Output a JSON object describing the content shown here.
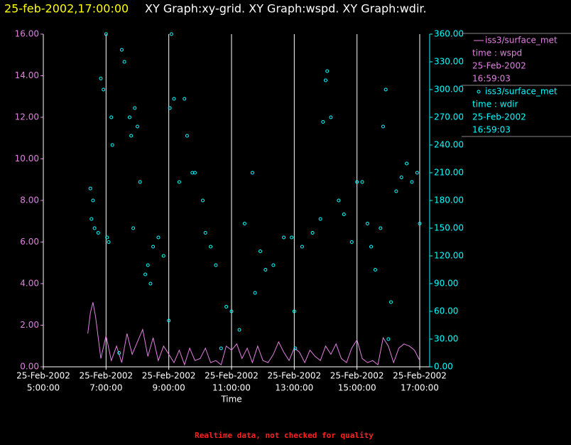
{
  "chart_data": {
    "type": "line_scatter",
    "title_time": "25-feb-2002,17:00:00",
    "title": "XY Graph:xy-grid.  XY Graph:wspd.  XY Graph:wdir.",
    "xlabel": "Time",
    "footer": "Realtime data, not checked for quality",
    "grid": true,
    "xlim": [
      "2002-02-25 05:00",
      "2002-02-25 17:00"
    ],
    "xticks": [
      {
        "value": "2002-02-25 05:00",
        "label": [
          "25-Feb-2002",
          "5:00:00"
        ]
      },
      {
        "value": "2002-02-25 07:00",
        "label": [
          "25-Feb-2002",
          "7:00:00"
        ]
      },
      {
        "value": "2002-02-25 09:00",
        "label": [
          "25-Feb-2002",
          "9:00:00"
        ]
      },
      {
        "value": "2002-02-25 11:00",
        "label": [
          "25-Feb-2002",
          "11:00:00"
        ]
      },
      {
        "value": "2002-02-25 13:00",
        "label": [
          "25-Feb-2002",
          "13:00:00"
        ]
      },
      {
        "value": "2002-02-25 15:00",
        "label": [
          "25-Feb-2002",
          "15:00:00"
        ]
      },
      {
        "value": "2002-02-25 17:00",
        "label": [
          "25-Feb-2002",
          "17:00:00"
        ]
      }
    ],
    "ylim": [
      0,
      16
    ],
    "yticks": [
      {
        "value": 0,
        "label": "0.00"
      },
      {
        "value": 2,
        "label": "2.00"
      },
      {
        "value": 4,
        "label": "4.00"
      },
      {
        "value": 6,
        "label": "6.00"
      },
      {
        "value": 8,
        "label": "8.00"
      },
      {
        "value": 10,
        "label": "10.00"
      },
      {
        "value": 12,
        "label": "12.00"
      },
      {
        "value": 14,
        "label": "14.00"
      },
      {
        "value": 16,
        "label": "16.00"
      }
    ],
    "y2lim": [
      0,
      360
    ],
    "y2ticks": [
      {
        "value": 0,
        "label": "0.00"
      },
      {
        "value": 30,
        "label": "30.00"
      },
      {
        "value": 60,
        "label": "60.00"
      },
      {
        "value": 90,
        "label": "90.00"
      },
      {
        "value": 120,
        "label": "120.00"
      },
      {
        "value": 150,
        "label": "150.00"
      },
      {
        "value": 180,
        "label": "180.00"
      },
      {
        "value": 210,
        "label": "210.00"
      },
      {
        "value": 240,
        "label": "240.00"
      },
      {
        "value": 270,
        "label": "270.00"
      },
      {
        "value": 300,
        "label": "300.00"
      },
      {
        "value": 330,
        "label": "330.00"
      },
      {
        "value": 360,
        "label": "360.00"
      }
    ],
    "series": [
      {
        "name": "iss3/surface_met",
        "legend_lines": [
          "time : wspd",
          "25-Feb-2002",
          "16:59:03"
        ],
        "color": "#e080e0",
        "kind": "line",
        "x": [
          "2002-02-25 06:25",
          "2002-02-25 06:30",
          "2002-02-25 06:35",
          "2002-02-25 06:40",
          "2002-02-25 06:50",
          "2002-02-25 07:00",
          "2002-02-25 07:10",
          "2002-02-25 07:20",
          "2002-02-25 07:30",
          "2002-02-25 07:40",
          "2002-02-25 07:50",
          "2002-02-25 08:00",
          "2002-02-25 08:10",
          "2002-02-25 08:20",
          "2002-02-25 08:30",
          "2002-02-25 08:40",
          "2002-02-25 08:50",
          "2002-02-25 09:00",
          "2002-02-25 09:10",
          "2002-02-25 09:20",
          "2002-02-25 09:30",
          "2002-02-25 09:40",
          "2002-02-25 09:50",
          "2002-02-25 10:00",
          "2002-02-25 10:10",
          "2002-02-25 10:20",
          "2002-02-25 10:30",
          "2002-02-25 10:40",
          "2002-02-25 10:50",
          "2002-02-25 11:00",
          "2002-02-25 11:10",
          "2002-02-25 11:20",
          "2002-02-25 11:30",
          "2002-02-25 11:40",
          "2002-02-25 11:50",
          "2002-02-25 12:00",
          "2002-02-25 12:10",
          "2002-02-25 12:20",
          "2002-02-25 12:30",
          "2002-02-25 12:40",
          "2002-02-25 12:50",
          "2002-02-25 13:00",
          "2002-02-25 13:10",
          "2002-02-25 13:20",
          "2002-02-25 13:30",
          "2002-02-25 13:40",
          "2002-02-25 13:50",
          "2002-02-25 14:00",
          "2002-02-25 14:10",
          "2002-02-25 14:20",
          "2002-02-25 14:30",
          "2002-02-25 14:40",
          "2002-02-25 14:50",
          "2002-02-25 15:00",
          "2002-02-25 15:10",
          "2002-02-25 15:20",
          "2002-02-25 15:30",
          "2002-02-25 15:40",
          "2002-02-25 15:50",
          "2002-02-25 16:00",
          "2002-02-25 16:10",
          "2002-02-25 16:20",
          "2002-02-25 16:30",
          "2002-02-25 16:40",
          "2002-02-25 16:50",
          "2002-02-25 17:00"
        ],
        "values": [
          1.6,
          2.6,
          3.1,
          2.4,
          0.4,
          1.5,
          0.3,
          1.0,
          0.2,
          1.6,
          0.6,
          1.2,
          1.8,
          0.5,
          1.4,
          0.3,
          1.0,
          0.6,
          0.2,
          0.8,
          0.1,
          0.9,
          0.3,
          0.4,
          0.9,
          0.2,
          0.3,
          0.1,
          1.0,
          0.8,
          1.1,
          0.4,
          0.9,
          0.2,
          1.0,
          0.3,
          0.2,
          0.6,
          1.2,
          0.7,
          0.3,
          0.9,
          0.7,
          0.2,
          0.8,
          0.5,
          0.3,
          1.0,
          0.6,
          1.1,
          0.4,
          0.2,
          0.9,
          1.3,
          0.4,
          0.2,
          0.3,
          0.1,
          1.4,
          1.0,
          0.2,
          0.9,
          1.1,
          1.0,
          0.8,
          0.3
        ]
      },
      {
        "name": "iss3/surface_met",
        "legend_lines": [
          "time : wdir",
          "25-Feb-2002",
          "16:59:03"
        ],
        "color": "#00ffff",
        "kind": "scatter",
        "axis": "y2",
        "x": [
          "2002-02-25 06:30",
          "2002-02-25 06:32",
          "2002-02-25 06:35",
          "2002-02-25 06:38",
          "2002-02-25 06:45",
          "2002-02-25 06:50",
          "2002-02-25 06:55",
          "2002-02-25 07:00",
          "2002-02-25 07:02",
          "2002-02-25 07:05",
          "2002-02-25 07:10",
          "2002-02-25 07:12",
          "2002-02-25 07:25",
          "2002-02-25 07:30",
          "2002-02-25 07:35",
          "2002-02-25 07:45",
          "2002-02-25 07:48",
          "2002-02-25 07:52",
          "2002-02-25 07:55",
          "2002-02-25 08:00",
          "2002-02-25 08:05",
          "2002-02-25 08:15",
          "2002-02-25 08:20",
          "2002-02-25 08:25",
          "2002-02-25 08:30",
          "2002-02-25 08:40",
          "2002-02-25 08:50",
          "2002-02-25 09:00",
          "2002-02-25 09:02",
          "2002-02-25 09:05",
          "2002-02-25 09:10",
          "2002-02-25 09:20",
          "2002-02-25 09:30",
          "2002-02-25 09:35",
          "2002-02-25 09:45",
          "2002-02-25 09:50",
          "2002-02-25 10:05",
          "2002-02-25 10:10",
          "2002-02-25 10:20",
          "2002-02-25 10:30",
          "2002-02-25 10:40",
          "2002-02-25 10:50",
          "2002-02-25 11:00",
          "2002-02-25 11:15",
          "2002-02-25 11:25",
          "2002-02-25 11:40",
          "2002-02-25 11:45",
          "2002-02-25 11:55",
          "2002-02-25 12:05",
          "2002-02-25 12:20",
          "2002-02-25 12:40",
          "2002-02-25 12:55",
          "2002-02-25 13:00",
          "2002-02-25 13:02",
          "2002-02-25 13:15",
          "2002-02-25 13:35",
          "2002-02-25 13:50",
          "2002-02-25 13:55",
          "2002-02-25 14:00",
          "2002-02-25 14:03",
          "2002-02-25 14:10",
          "2002-02-25 14:25",
          "2002-02-25 14:35",
          "2002-02-25 14:50",
          "2002-02-25 15:00",
          "2002-02-25 15:10",
          "2002-02-25 15:20",
          "2002-02-25 15:27",
          "2002-02-25 15:35",
          "2002-02-25 15:45",
          "2002-02-25 15:50",
          "2002-02-25 15:55",
          "2002-02-25 16:00",
          "2002-02-25 16:05",
          "2002-02-25 16:15",
          "2002-02-25 16:25",
          "2002-02-25 16:35",
          "2002-02-25 16:45",
          "2002-02-25 16:55",
          "2002-02-25 17:00"
        ],
        "values": [
          193,
          160,
          180,
          150,
          145,
          312,
          300,
          360,
          140,
          135,
          270,
          240,
          15,
          343,
          330,
          270,
          250,
          150,
          280,
          260,
          200,
          100,
          110,
          90,
          130,
          140,
          120,
          50,
          280,
          360,
          290,
          200,
          290,
          250,
          210,
          210,
          180,
          145,
          130,
          110,
          20,
          65,
          60,
          40,
          155,
          210,
          80,
          125,
          105,
          110,
          140,
          140,
          60,
          20,
          130,
          145,
          160,
          265,
          310,
          320,
          270,
          180,
          165,
          135,
          200,
          200,
          155,
          130,
          105,
          150,
          260,
          300,
          30,
          70,
          190,
          205,
          220,
          200,
          210,
          155
        ]
      }
    ]
  }
}
